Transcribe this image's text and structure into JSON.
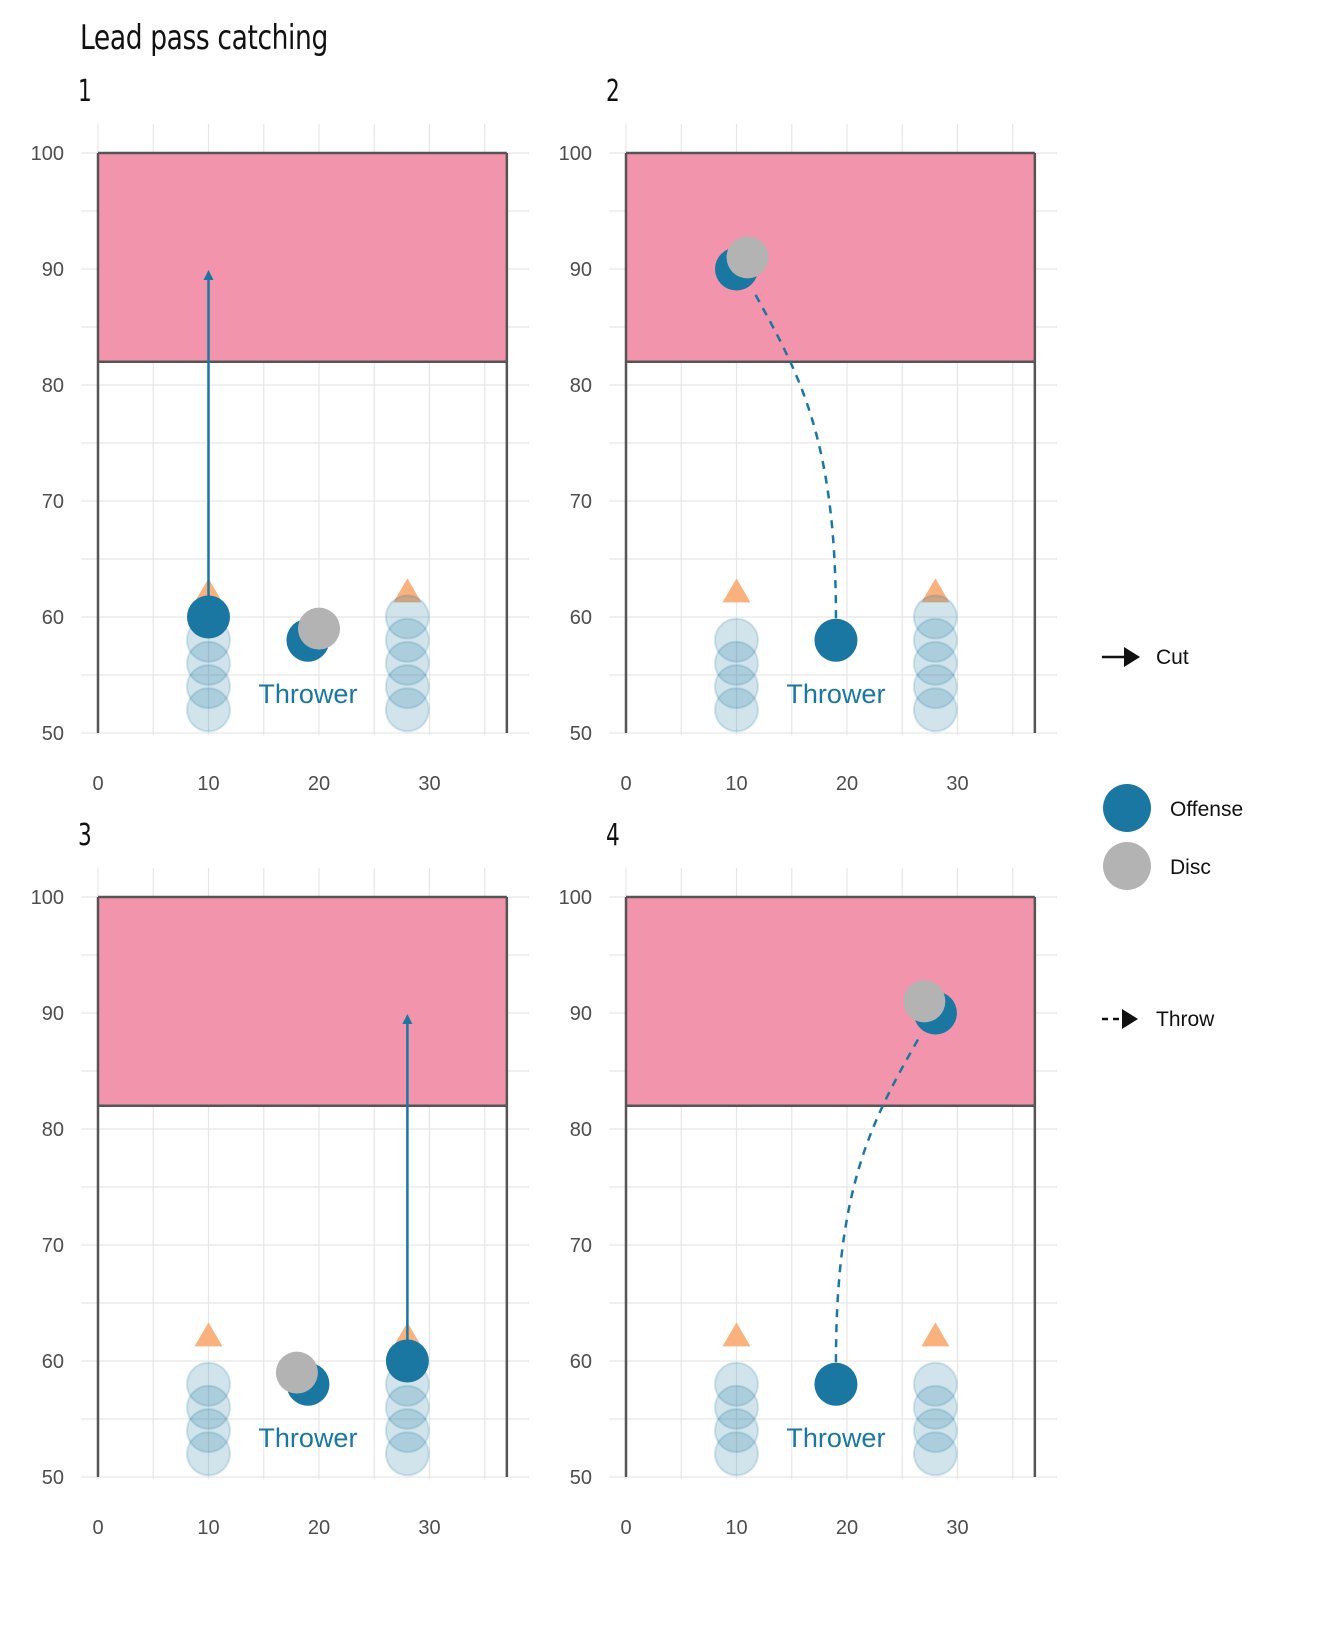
{
  "title": "Lead pass catching",
  "colors": {
    "endzone": "#f294ab",
    "offense": "#1a77a1",
    "disc": "#b3b3b3",
    "defense_cone": "#f9b27d",
    "field_line": "#555555",
    "grid": "#e6e6e6"
  },
  "axes": {
    "x_ticks": [
      "0",
      "10",
      "20",
      "30"
    ],
    "y_ticks": [
      "50",
      "60",
      "70",
      "80",
      "90",
      "100"
    ],
    "xlim": [
      0,
      37
    ],
    "ylim": [
      50,
      100
    ],
    "endzone_y": [
      82,
      100
    ]
  },
  "panels": [
    {
      "label": "1",
      "thrower_label": "Thrower",
      "stack_left": [
        52,
        54,
        56,
        58
      ],
      "stack_right": [
        52,
        54,
        56,
        58,
        60
      ],
      "cones": [
        [
          10,
          62.3
        ],
        [
          28,
          62.3
        ]
      ],
      "offense": [
        [
          10,
          60
        ],
        [
          19,
          58
        ]
      ],
      "disc": [
        20,
        59
      ],
      "cut": {
        "from": [
          10,
          60
        ],
        "to": [
          10,
          90
        ]
      },
      "throw": null
    },
    {
      "label": "2",
      "thrower_label": "Thrower",
      "stack_left": [
        52,
        54,
        56,
        58
      ],
      "stack_right": [
        52,
        54,
        56,
        58,
        60
      ],
      "cones": [
        [
          10,
          62.3
        ],
        [
          28,
          62.3
        ]
      ],
      "offense": [
        [
          10,
          90
        ],
        [
          19,
          58
        ]
      ],
      "disc": [
        11,
        91
      ],
      "cut": null,
      "throw": {
        "from": [
          19,
          58
        ],
        "to": [
          10,
          90
        ]
      }
    },
    {
      "label": "3",
      "thrower_label": "Thrower",
      "stack_left": [
        52,
        54,
        56,
        58
      ],
      "stack_right": [
        52,
        54,
        56,
        58
      ],
      "cones": [
        [
          10,
          62.3
        ],
        [
          28,
          62.3
        ]
      ],
      "offense": [
        [
          28,
          60
        ],
        [
          19,
          58
        ]
      ],
      "disc": [
        18,
        59
      ],
      "cut": {
        "from": [
          28,
          60
        ],
        "to": [
          28,
          90
        ]
      },
      "throw": null
    },
    {
      "label": "4",
      "thrower_label": "Thrower",
      "stack_left": [
        52,
        54,
        56,
        58
      ],
      "stack_right": [
        52,
        54,
        56,
        58
      ],
      "cones": [
        [
          10,
          62.3
        ],
        [
          28,
          62.3
        ]
      ],
      "offense": [
        [
          28,
          90
        ],
        [
          19,
          58
        ]
      ],
      "disc": [
        27,
        91
      ],
      "cut": null,
      "throw": {
        "from": [
          19,
          58
        ],
        "to": [
          28,
          90
        ]
      }
    }
  ],
  "legend": {
    "cut_label": "Cut",
    "offense_label": "Offense",
    "disc_label": "Disc",
    "throw_label": "Throw"
  }
}
